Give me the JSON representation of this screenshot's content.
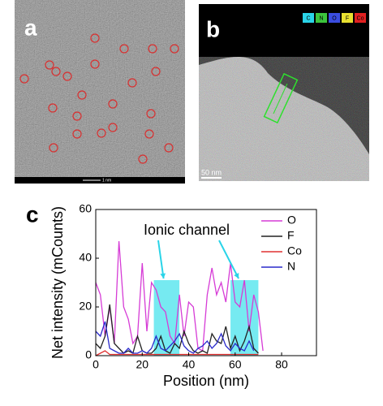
{
  "panels": {
    "a": {
      "label": "a",
      "scale": "1 nm"
    },
    "b": {
      "label": "b",
      "scale": "50 nm",
      "legend": [
        {
          "name": "C",
          "color": "#2ad4e8"
        },
        {
          "name": "N",
          "color": "#3cc43c"
        },
        {
          "name": "O",
          "color": "#3a4de0"
        },
        {
          "name": "F",
          "color": "#e8e030"
        },
        {
          "name": "Co",
          "color": "#e02020"
        }
      ]
    }
  },
  "chart_data": {
    "type": "line",
    "label": "c",
    "xlabel": "Position (nm)",
    "ylabel": "Net intensity (mCounts)",
    "annotation": "Ionic channel",
    "x": [
      0,
      2,
      4,
      6,
      8,
      10,
      12,
      14,
      16,
      18,
      20,
      22,
      24,
      26,
      28,
      30,
      32,
      34,
      36,
      38,
      40,
      42,
      44,
      46,
      48,
      50,
      52,
      54,
      56,
      58,
      60,
      62,
      64,
      66,
      68,
      70,
      72
    ],
    "series": [
      {
        "name": "O",
        "color": "#d63cd6",
        "values": [
          30,
          25,
          8,
          20,
          5,
          47,
          20,
          15,
          5,
          8,
          38,
          10,
          30,
          27,
          20,
          18,
          8,
          5,
          25,
          8,
          22,
          20,
          3,
          2,
          25,
          36,
          25,
          30,
          22,
          38,
          22,
          20,
          31,
          10,
          25,
          18,
          2
        ]
      },
      {
        "name": "F",
        "color": "#222222",
        "values": [
          5,
          3,
          8,
          21,
          5,
          3,
          1,
          2,
          1,
          8,
          2,
          1,
          1,
          3,
          8,
          2,
          1,
          5,
          3,
          10,
          5,
          2,
          1,
          2,
          1,
          9,
          6,
          5,
          12,
          3,
          8,
          2,
          6,
          12,
          3,
          1,
          null
        ]
      },
      {
        "name": "Co",
        "color": "#e03030",
        "values": [
          0,
          1,
          2,
          0.5,
          0.5,
          0.5,
          0.5,
          0.5,
          0.5,
          0.5,
          0.5,
          0.5,
          0.5,
          0.5,
          0.5,
          0.5,
          0.5,
          0.5,
          0.5,
          0.5,
          0.5,
          0.5,
          0.5,
          0.5,
          0.5,
          0.5,
          0.5,
          0.5,
          0.5,
          0.5,
          0.5,
          0.5,
          0.5,
          0.5,
          0.5,
          0.5,
          null
        ]
      },
      {
        "name": "N",
        "color": "#2a2acc",
        "values": [
          10,
          8,
          14,
          3,
          2,
          1,
          1,
          3,
          1,
          1,
          2,
          1,
          3,
          8,
          3,
          2,
          4,
          6,
          9,
          4,
          2,
          1,
          3,
          4,
          6,
          3,
          5,
          9,
          4,
          2,
          5,
          3,
          2,
          6,
          2,
          null,
          null
        ]
      }
    ],
    "highlights": [
      {
        "x0": 25,
        "x1": 36,
        "top": 31
      },
      {
        "x0": 58,
        "x1": 70,
        "top": 31
      }
    ],
    "highlight_color": "#5ee6ee",
    "xlim": [
      0,
      95
    ],
    "ylim": [
      0,
      60
    ],
    "xticks": [
      0,
      20,
      40,
      60,
      80
    ],
    "yticks": [
      0,
      20,
      40,
      60
    ],
    "legend": "upper right"
  }
}
